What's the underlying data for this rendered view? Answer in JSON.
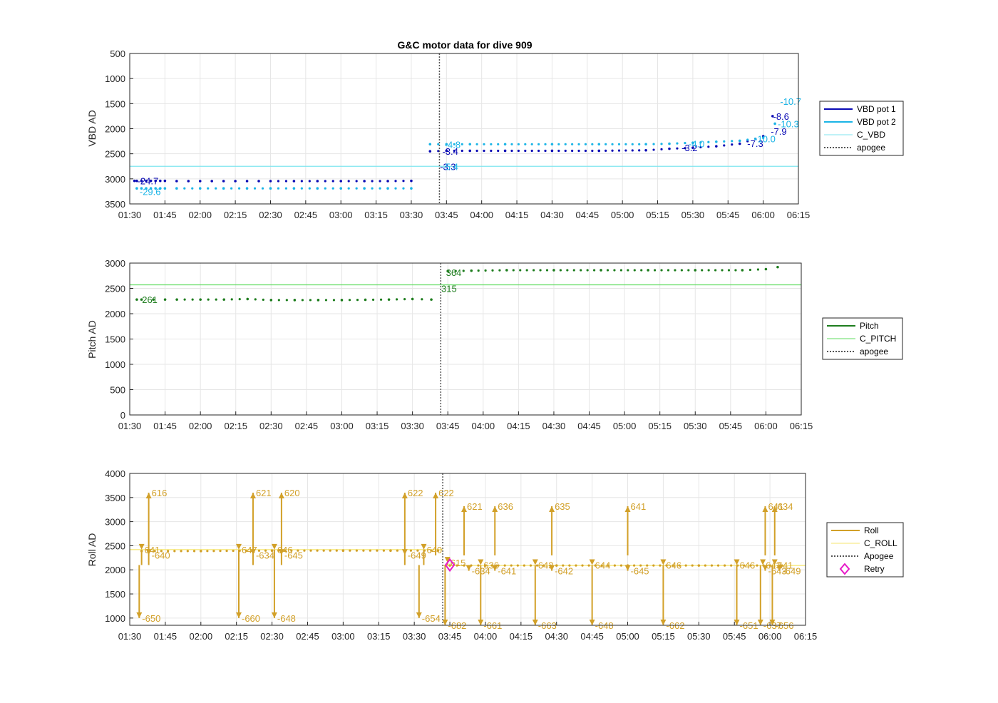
{
  "chart_data": [
    {
      "type": "line",
      "title": "G&C motor data for dive 909",
      "ylabel": "VBD AD",
      "xlabel": "",
      "x_tick_labels": [
        "01:30",
        "01:45",
        "02:00",
        "02:15",
        "02:30",
        "02:45",
        "03:00",
        "03:15",
        "03:30",
        "03:45",
        "04:00",
        "04:15",
        "04:30",
        "04:45",
        "05:00",
        "05:15",
        "05:30",
        "05:45",
        "06:00",
        "06:15"
      ],
      "y_ticks": [
        500,
        1000,
        1500,
        2000,
        2500,
        3000,
        3500
      ],
      "ylim": [
        500,
        3500
      ],
      "y_reversed": true,
      "xlim": [
        "01:30",
        "06:15"
      ],
      "grid": true,
      "legend_position": "right",
      "legend": [
        "VBD pot 1",
        "VBD pot 2",
        "C_VBD",
        "apogee"
      ],
      "colors": {
        "VBD pot 1": "#0a0ab4",
        "VBD pot 2": "#1ab4e6",
        "C_VBD": "#7fe6ef",
        "apogee": "#555555"
      },
      "apogee": "03:42",
      "reference_lines": [
        {
          "name": "C_VBD",
          "y": 2750
        }
      ],
      "series": [
        {
          "name": "VBD pot 1",
          "x": [
            "01:32",
            "01:33",
            "01:35",
            "01:37",
            "01:39",
            "01:41",
            "01:43",
            "01:45",
            "01:50",
            "01:55",
            "02:00",
            "02:05",
            "02:10",
            "02:15",
            "02:20",
            "02:25",
            "02:30",
            "02:40",
            "02:50",
            "03:00",
            "03:10",
            "03:20",
            "03:30",
            "03:38",
            "03:45",
            "03:55",
            "04:10",
            "04:30",
            "04:50",
            "05:10",
            "05:20",
            "05:30",
            "05:40",
            "05:50",
            "06:00",
            "06:04"
          ],
          "y": [
            3040,
            3040,
            3040,
            3040,
            3040,
            3040,
            3040,
            3040,
            3045,
            3045,
            3045,
            3045,
            3045,
            3045,
            3045,
            3045,
            3045,
            3045,
            3045,
            3045,
            3045,
            3045,
            3040,
            2450,
            2440,
            2440,
            2440,
            2440,
            2440,
            2430,
            2400,
            2380,
            2350,
            2300,
            2150,
            1750
          ]
        },
        {
          "name": "VBD pot 2",
          "x": [
            "01:33",
            "01:35",
            "01:37",
            "01:39",
            "01:41",
            "01:43",
            "01:45",
            "01:50",
            "02:00",
            "02:10",
            "02:20",
            "02:30",
            "02:40",
            "02:50",
            "03:00",
            "03:10",
            "03:20",
            "03:30",
            "03:38",
            "03:45",
            "03:55",
            "04:10",
            "04:30",
            "04:50",
            "05:10",
            "05:20",
            "05:30",
            "05:40",
            "05:50",
            "06:00",
            "06:05"
          ],
          "y": [
            3190,
            3190,
            3190,
            3190,
            3190,
            3190,
            3190,
            3190,
            3190,
            3190,
            3190,
            3190,
            3190,
            3190,
            3190,
            3190,
            3190,
            3190,
            2310,
            2310,
            2310,
            2310,
            2310,
            2310,
            2310,
            2300,
            2280,
            2260,
            2240,
            2180,
            1900
          ]
        }
      ],
      "annotations": [
        {
          "text": "-24.7",
          "x": "01:32",
          "y": 3040,
          "series": "VBD pot 1"
        },
        {
          "text": "-29.6",
          "x": "01:33",
          "y": 3250,
          "series": "VBD pot 2"
        },
        {
          "text": "-3.4",
          "x": "03:42",
          "y": 2450,
          "series": "VBD pot 1"
        },
        {
          "text": "-3.3",
          "x": "03:41",
          "y": 2750,
          "series": "VBD pot 1"
        },
        {
          "text": "-4.8",
          "x": "03:43",
          "y": 2310,
          "series": "VBD pot 2"
        },
        {
          "text": "-5.4",
          "x": "03:42",
          "y": 2750,
          "series": "VBD pot 2"
        },
        {
          "text": "-3.2",
          "x": "05:24",
          "y": 2380,
          "series": "VBD pot 1"
        },
        {
          "text": "-4.0",
          "x": "05:27",
          "y": 2300,
          "series": "VBD pot 2"
        },
        {
          "text": "-7.3",
          "x": "05:52",
          "y": 2290,
          "series": "VBD pot 1"
        },
        {
          "text": "-10.0",
          "x": "05:55",
          "y": 2200,
          "series": "VBD pot 2"
        },
        {
          "text": "-7.9",
          "x": "06:02",
          "y": 2050,
          "series": "VBD pot 1"
        },
        {
          "text": "-10.3",
          "x": "06:05",
          "y": 1900,
          "series": "VBD pot 2"
        },
        {
          "text": "-8.6",
          "x": "06:03",
          "y": 1750,
          "series": "VBD pot 1"
        },
        {
          "text": "-10.7",
          "x": "06:06",
          "y": 1450,
          "series": "VBD pot 2"
        }
      ]
    },
    {
      "type": "line",
      "ylabel": "Pitch AD",
      "xlabel": "",
      "x_tick_labels": [
        "01:30",
        "01:45",
        "02:00",
        "02:15",
        "02:30",
        "02:45",
        "03:00",
        "03:15",
        "03:30",
        "03:45",
        "04:00",
        "04:15",
        "04:30",
        "04:45",
        "05:00",
        "05:15",
        "05:30",
        "05:45",
        "06:00",
        "06:15"
      ],
      "y_ticks": [
        0,
        500,
        1000,
        1500,
        2000,
        2500,
        3000
      ],
      "ylim": [
        0,
        3000
      ],
      "xlim": [
        "01:30",
        "06:15"
      ],
      "grid": true,
      "legend_position": "right",
      "legend": [
        "Pitch",
        "C_PITCH",
        "apogee"
      ],
      "colors": {
        "Pitch": "#1e7d1e",
        "C_PITCH": "#5fdc5f",
        "apogee": "#555555"
      },
      "apogee": "03:42",
      "reference_lines": [
        {
          "name": "C_PITCH",
          "y": 2570
        }
      ],
      "series": [
        {
          "name": "Pitch",
          "x": [
            "01:33",
            "01:35",
            "01:40",
            "01:45",
            "01:50",
            "02:00",
            "02:10",
            "02:20",
            "02:30",
            "02:40",
            "02:50",
            "03:00",
            "03:10",
            "03:20",
            "03:30",
            "03:38",
            "03:45",
            "03:55",
            "04:10",
            "04:30",
            "04:50",
            "05:10",
            "05:30",
            "05:50",
            "06:00",
            "06:05"
          ],
          "y": [
            2280,
            2280,
            2280,
            2280,
            2280,
            2280,
            2280,
            2290,
            2270,
            2270,
            2270,
            2270,
            2275,
            2280,
            2290,
            2280,
            2840,
            2850,
            2860,
            2860,
            2860,
            2860,
            2860,
            2860,
            2880,
            2920
          ]
        }
      ],
      "annotations": [
        {
          "text": "261",
          "x": "01:34",
          "y": 2280
        },
        {
          "text": "315",
          "x": "03:41",
          "y": 2500
        },
        {
          "text": "364",
          "x": "03:43",
          "y": 2820
        }
      ]
    },
    {
      "type": "line",
      "ylabel": "Roll AD",
      "xlabel": "",
      "x_tick_labels": [
        "01:30",
        "01:45",
        "02:00",
        "02:15",
        "02:30",
        "02:45",
        "03:00",
        "03:15",
        "03:30",
        "03:45",
        "04:00",
        "04:15",
        "04:30",
        "04:45",
        "05:00",
        "05:15",
        "05:30",
        "05:45",
        "06:00",
        "06:15"
      ],
      "y_ticks": [
        1000,
        1500,
        2000,
        2500,
        3000,
        3500,
        4000
      ],
      "ylim": [
        850,
        4000
      ],
      "xlim": [
        "01:30",
        "06:15"
      ],
      "grid": true,
      "legend_position": "right",
      "legend": [
        "Roll",
        "C_ROLL",
        "Apogee",
        "Retry"
      ],
      "colors": {
        "Roll": "#d2a028",
        "C_ROLL": "#f5e66e",
        "Apogee": "#555555",
        "Retry": "#e619c8"
      },
      "apogee": "03:42",
      "reference_lines": [
        {
          "name": "C_ROLL",
          "y": 2420,
          "x": [
            "01:30",
            "03:42"
          ]
        },
        {
          "name": "C_ROLL",
          "y": 2090,
          "x": [
            "03:42",
            "06:15"
          ]
        }
      ],
      "retry": {
        "x": "03:45",
        "y": 2100
      },
      "series": [
        {
          "name": "Roll",
          "x": [
            "01:35",
            "02:00",
            "02:30",
            "03:00",
            "03:20",
            "03:40",
            "03:45",
            "04:00",
            "04:30",
            "05:00",
            "05:30",
            "06:00",
            "06:05"
          ],
          "y": [
            2390,
            2390,
            2400,
            2400,
            2400,
            2400,
            2090,
            2090,
            2090,
            2090,
            2090,
            2090,
            2090
          ]
        }
      ],
      "annotations": [
        {
          "text": "641",
          "x": "01:35",
          "y": 2420
        },
        {
          "text": "616",
          "x": "01:38",
          "y": 3600
        },
        {
          "text": "-640",
          "x": "01:38",
          "y": 2310
        },
        {
          "text": "-650",
          "x": "01:34",
          "y": 1000
        },
        {
          "text": "647",
          "x": "02:16",
          "y": 2420
        },
        {
          "text": "621",
          "x": "02:22",
          "y": 3600
        },
        {
          "text": "-634",
          "x": "02:22",
          "y": 2310
        },
        {
          "text": "-660",
          "x": "02:16",
          "y": 1000
        },
        {
          "text": "646",
          "x": "02:31",
          "y": 2420
        },
        {
          "text": "620",
          "x": "02:34",
          "y": 3600
        },
        {
          "text": "-645",
          "x": "02:34",
          "y": 2310
        },
        {
          "text": "-648",
          "x": "02:31",
          "y": 1000
        },
        {
          "text": "622",
          "x": "03:26",
          "y": 3600
        },
        {
          "text": "622",
          "x": "03:39",
          "y": 3600
        },
        {
          "text": "640",
          "x": "03:34",
          "y": 2420
        },
        {
          "text": "-649",
          "x": "03:26",
          "y": 2310
        },
        {
          "text": "-654",
          "x": "03:32",
          "y": 1000
        },
        {
          "text": "615",
          "x": "03:44",
          "y": 2150
        },
        {
          "text": "-682",
          "x": "03:43",
          "y": 850
        },
        {
          "text": "621",
          "x": "03:51",
          "y": 3320
        },
        {
          "text": "-634",
          "x": "03:53",
          "y": 1980
        },
        {
          "text": "636",
          "x": "03:58",
          "y": 2100
        },
        {
          "text": "-661",
          "x": "03:58",
          "y": 850
        },
        {
          "text": "636",
          "x": "04:04",
          "y": 3320
        },
        {
          "text": "-641",
          "x": "04:04",
          "y": 1980
        },
        {
          "text": "643",
          "x": "04:21",
          "y": 2100
        },
        {
          "text": "-663",
          "x": "04:21",
          "y": 850
        },
        {
          "text": "635",
          "x": "04:28",
          "y": 3320
        },
        {
          "text": "-642",
          "x": "04:28",
          "y": 1980
        },
        {
          "text": "644",
          "x": "04:45",
          "y": 2100
        },
        {
          "text": "-648",
          "x": "04:45",
          "y": 850
        },
        {
          "text": "641",
          "x": "05:00",
          "y": 3320
        },
        {
          "text": "-645",
          "x": "05:00",
          "y": 1980
        },
        {
          "text": "646",
          "x": "05:15",
          "y": 2100
        },
        {
          "text": "-662",
          "x": "05:15",
          "y": 850
        },
        {
          "text": "646",
          "x": "05:46",
          "y": 2100
        },
        {
          "text": "-651",
          "x": "05:46",
          "y": 850
        },
        {
          "text": "643",
          "x": "05:57",
          "y": 2100
        },
        {
          "text": "-637",
          "x": "05:56",
          "y": 850
        },
        {
          "text": "641",
          "x": "05:58",
          "y": 3320
        },
        {
          "text": "-643",
          "x": "05:58",
          "y": 1980
        },
        {
          "text": "641",
          "x": "06:02",
          "y": 2100
        },
        {
          "text": "634",
          "x": "06:02",
          "y": 3320
        },
        {
          "text": "-649",
          "x": "06:04",
          "y": 1980
        },
        {
          "text": "-656",
          "x": "06:01",
          "y": 850
        }
      ]
    }
  ]
}
